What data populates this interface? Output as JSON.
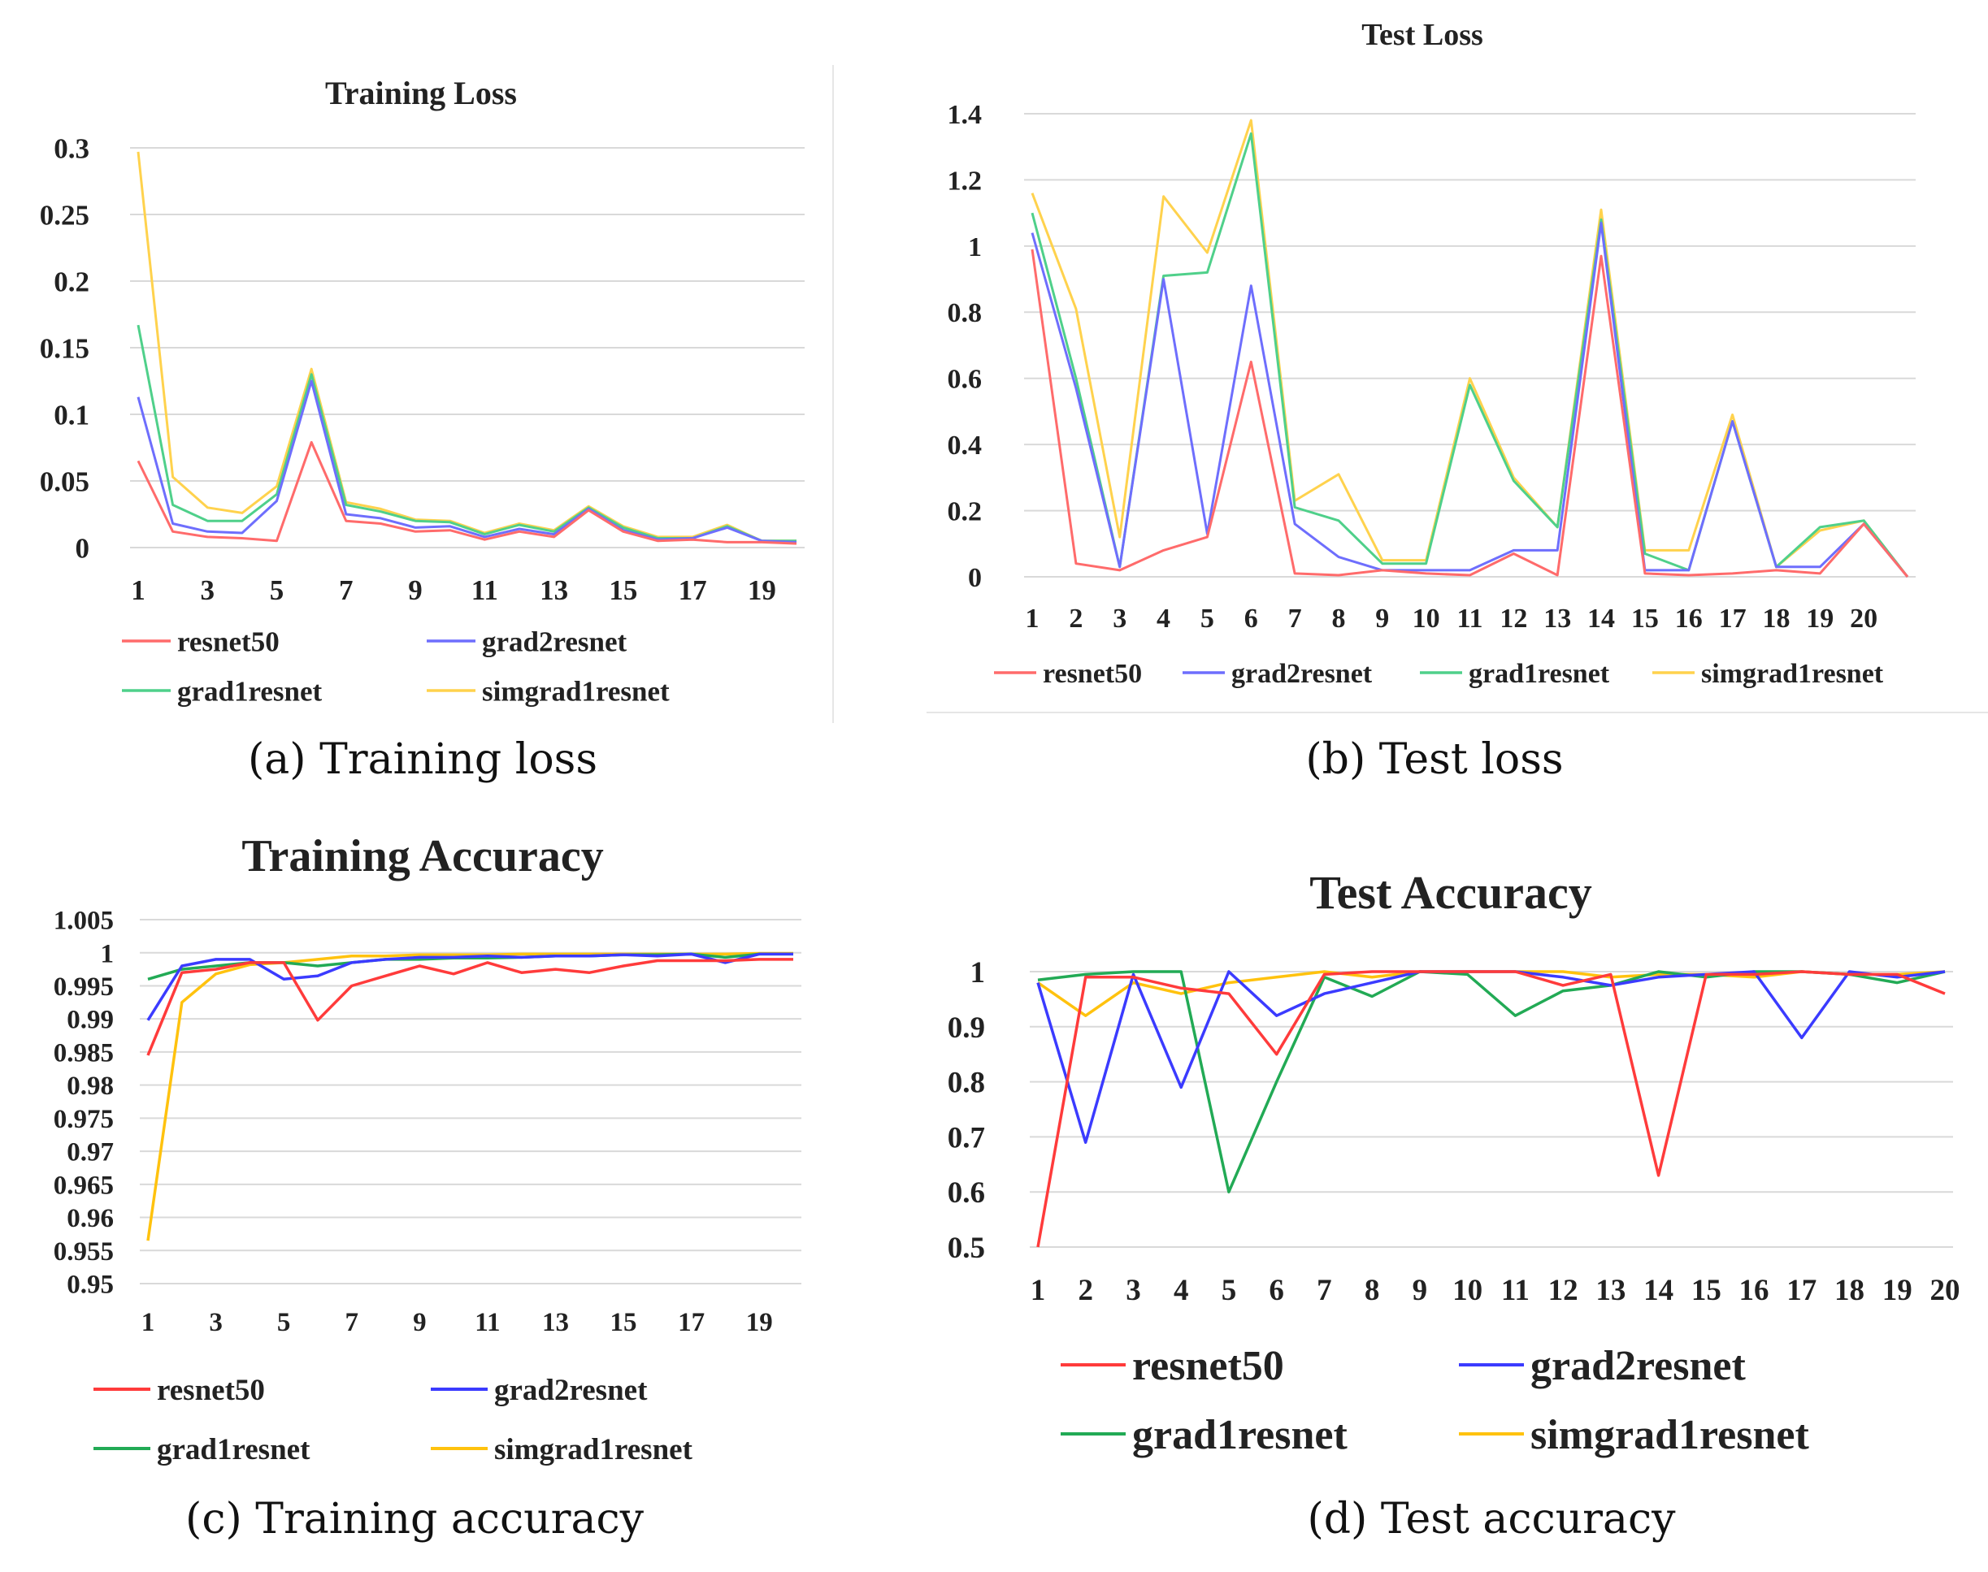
{
  "colors": {
    "resnet50": "#ff3b3b",
    "grad2resnet": "#3b3bff",
    "grad1resnet": "#22aa55",
    "simgrad1resnet": "#ffc20e",
    "light": {
      "resnet50": "#ff6b6b",
      "grad2resnet": "#6e6efd",
      "grad1resnet": "#4fd08a",
      "simgrad1resnet": "#ffd24d"
    },
    "grid": "#d9d9d9"
  },
  "captions": {
    "a": "(a)  Training loss",
    "b": "(b)  Test loss",
    "c": "(c)  Training accuracy",
    "d": "(d)  Test accuracy"
  },
  "chart_data": [
    {
      "id": "a",
      "type": "line",
      "title": "Training Loss",
      "xlabel": "",
      "ylabel": "",
      "x": [
        1,
        2,
        3,
        4,
        5,
        6,
        7,
        8,
        9,
        10,
        11,
        12,
        13,
        14,
        15,
        16,
        17,
        18,
        19,
        20
      ],
      "x_tick_labels": [
        "1",
        "",
        "3",
        "",
        "5",
        "",
        "7",
        "",
        "9",
        "",
        "11",
        "",
        "13",
        "",
        "15",
        "",
        "17",
        "",
        "19",
        ""
      ],
      "ylim": [
        0,
        0.3
      ],
      "y_ticks": [
        "0",
        "0.05",
        "0.1",
        "0.15",
        "0.2",
        "0.25",
        "0.3"
      ],
      "grid": true,
      "legend": "bottom, 2 columns",
      "series": [
        {
          "name": "resnet50",
          "values": [
            0.065,
            0.012,
            0.008,
            0.007,
            0.005,
            0.079,
            0.02,
            0.018,
            0.012,
            0.013,
            0.006,
            0.012,
            0.008,
            0.028,
            0.012,
            0.005,
            0.006,
            0.004,
            0.004,
            0.003
          ]
        },
        {
          "name": "grad2resnet",
          "values": [
            0.113,
            0.018,
            0.012,
            0.011,
            0.035,
            0.125,
            0.025,
            0.022,
            0.015,
            0.016,
            0.008,
            0.014,
            0.01,
            0.029,
            0.013,
            0.006,
            0.007,
            0.015,
            0.005,
            0.004
          ]
        },
        {
          "name": "grad1resnet",
          "values": [
            0.167,
            0.032,
            0.02,
            0.02,
            0.04,
            0.13,
            0.032,
            0.027,
            0.02,
            0.019,
            0.01,
            0.017,
            0.012,
            0.03,
            0.015,
            0.007,
            0.007,
            0.016,
            0.005,
            0.005
          ]
        },
        {
          "name": "simgrad1resnet",
          "values": [
            0.297,
            0.053,
            0.03,
            0.026,
            0.046,
            0.134,
            0.034,
            0.029,
            0.021,
            0.02,
            0.011,
            0.018,
            0.013,
            0.031,
            0.016,
            0.008,
            0.008,
            0.017,
            0.005,
            0.005
          ]
        }
      ]
    },
    {
      "id": "b",
      "type": "line",
      "title": "Test Loss",
      "xlabel": "",
      "ylabel": "",
      "x": [
        1,
        2,
        3,
        4,
        5,
        6,
        7,
        8,
        9,
        10,
        11,
        12,
        13,
        14,
        15,
        16,
        17,
        18,
        19,
        20,
        21
      ],
      "x_tick_labels": [
        "1",
        "2",
        "3",
        "4",
        "5",
        "6",
        "7",
        "8",
        "9",
        "10",
        "11",
        "12",
        "13",
        "14",
        "15",
        "16",
        "17",
        "18",
        "19",
        "20",
        ""
      ],
      "ylim": [
        0,
        1.4
      ],
      "y_ticks": [
        "0",
        "0.2",
        "0.4",
        "0.6",
        "0.8",
        "1",
        "1.2",
        "1.4"
      ],
      "grid": true,
      "legend": "bottom, 1 row",
      "series": [
        {
          "name": "resnet50",
          "values": [
            0.99,
            0.04,
            0.02,
            0.08,
            0.12,
            0.65,
            0.01,
            0.005,
            0.02,
            0.01,
            0.005,
            0.07,
            0.005,
            0.97,
            0.01,
            0.005,
            0.01,
            0.02,
            0.01,
            0.16,
            0.0
          ]
        },
        {
          "name": "grad2resnet",
          "values": [
            1.04,
            0.57,
            0.03,
            0.9,
            0.13,
            0.88,
            0.16,
            0.06,
            0.02,
            0.02,
            0.02,
            0.08,
            0.08,
            1.07,
            0.02,
            0.02,
            0.47,
            0.03,
            0.03,
            0.16,
            0.0
          ]
        },
        {
          "name": "grad1resnet",
          "values": [
            1.1,
            0.6,
            0.03,
            0.91,
            0.92,
            1.34,
            0.21,
            0.17,
            0.04,
            0.04,
            0.58,
            0.29,
            0.15,
            1.08,
            0.07,
            0.02,
            0.47,
            0.03,
            0.15,
            0.17,
            0.0
          ]
        },
        {
          "name": "simgrad1resnet",
          "values": [
            1.16,
            0.81,
            0.12,
            1.15,
            0.98,
            1.38,
            0.23,
            0.31,
            0.05,
            0.05,
            0.6,
            0.3,
            0.15,
            1.11,
            0.08,
            0.08,
            0.49,
            0.03,
            0.14,
            0.17,
            0.0
          ]
        }
      ]
    },
    {
      "id": "c",
      "type": "line",
      "title": "Training Accuracy",
      "xlabel": "",
      "ylabel": "",
      "x": [
        1,
        2,
        3,
        4,
        5,
        6,
        7,
        8,
        9,
        10,
        11,
        12,
        13,
        14,
        15,
        16,
        17,
        18,
        19,
        20
      ],
      "x_tick_labels": [
        "1",
        "",
        "3",
        "",
        "5",
        "",
        "7",
        "",
        "9",
        "",
        "11",
        "",
        "13",
        "",
        "15",
        "",
        "17",
        "",
        "19",
        ""
      ],
      "ylim": [
        0.95,
        1.005
      ],
      "y_ticks": [
        "0.95",
        "0.955",
        "0.96",
        "0.965",
        "0.97",
        "0.975",
        "0.98",
        "0.985",
        "0.99",
        "0.995",
        "1",
        "1.005"
      ],
      "grid": true,
      "legend": "bottom, 2 columns",
      "series": [
        {
          "name": "resnet50",
          "values": [
            0.9845,
            0.997,
            0.9975,
            0.9985,
            0.9985,
            0.9898,
            0.995,
            0.9965,
            0.998,
            0.9968,
            0.9985,
            0.997,
            0.9975,
            0.997,
            0.998,
            0.9988,
            0.9988,
            0.9988,
            0.999,
            0.999
          ]
        },
        {
          "name": "grad2resnet",
          "values": [
            0.9898,
            0.998,
            0.999,
            0.999,
            0.996,
            0.9965,
            0.9985,
            0.999,
            0.9993,
            0.9993,
            0.9995,
            0.9993,
            0.9995,
            0.9995,
            0.9997,
            0.9995,
            0.9998,
            0.9985,
            0.9998,
            0.9998
          ]
        },
        {
          "name": "grad1resnet",
          "values": [
            0.996,
            0.9975,
            0.998,
            0.9985,
            0.9985,
            0.998,
            0.9985,
            0.999,
            0.999,
            0.9992,
            0.9992,
            0.9993,
            0.9995,
            0.9995,
            0.9997,
            0.9997,
            0.9998,
            0.9993,
            0.9998,
            0.9998
          ]
        },
        {
          "name": "simgrad1resnet",
          "values": [
            0.9565,
            0.9925,
            0.9968,
            0.9982,
            0.9985,
            0.999,
            0.9995,
            0.9995,
            0.9997,
            0.9997,
            0.9997,
            0.9998,
            0.9998,
            0.9998,
            0.9998,
            0.9998,
            0.9998,
            0.9998,
            0.9999,
            0.9999
          ]
        }
      ]
    },
    {
      "id": "d",
      "type": "line",
      "title": "Test Accuracy",
      "xlabel": "",
      "ylabel": "",
      "x": [
        1,
        2,
        3,
        4,
        5,
        6,
        7,
        8,
        9,
        10,
        11,
        12,
        13,
        14,
        15,
        16,
        17,
        18,
        19,
        20
      ],
      "x_tick_labels": [
        "1",
        "2",
        "3",
        "4",
        "5",
        "6",
        "7",
        "8",
        "9",
        "10",
        "11",
        "12",
        "13",
        "14",
        "15",
        "16",
        "17",
        "18",
        "19",
        "20"
      ],
      "ylim": [
        0.5,
        1.0
      ],
      "y_ticks": [
        "0.5",
        "0.6",
        "0.7",
        "0.8",
        "0.9",
        "1"
      ],
      "grid": true,
      "legend": "bottom, 2 columns",
      "series": [
        {
          "name": "resnet50",
          "values": [
            0.5,
            0.99,
            0.99,
            0.97,
            0.96,
            0.85,
            0.995,
            1.0,
            1.0,
            1.0,
            1.0,
            0.975,
            0.995,
            0.63,
            0.995,
            0.995,
            1.0,
            0.995,
            0.995,
            0.96
          ]
        },
        {
          "name": "grad2resnet",
          "values": [
            0.98,
            0.69,
            0.995,
            0.79,
            1.0,
            0.92,
            0.96,
            0.98,
            1.0,
            1.0,
            1.0,
            0.99,
            0.975,
            0.99,
            0.995,
            1.0,
            0.88,
            1.0,
            0.99,
            1.0
          ]
        },
        {
          "name": "grad1resnet",
          "values": [
            0.985,
            0.995,
            1.0,
            1.0,
            0.6,
            0.8,
            0.99,
            0.955,
            1.0,
            0.995,
            0.92,
            0.965,
            0.975,
            1.0,
            0.99,
            1.0,
            1.0,
            0.995,
            0.98,
            1.0
          ]
        },
        {
          "name": "simgrad1resnet",
          "values": [
            0.98,
            0.92,
            0.98,
            0.96,
            0.98,
            0.99,
            1.0,
            0.99,
            1.0,
            1.0,
            1.0,
            1.0,
            0.99,
            0.995,
            0.995,
            0.99,
            1.0,
            0.995,
            0.995,
            1.0
          ]
        }
      ]
    }
  ]
}
